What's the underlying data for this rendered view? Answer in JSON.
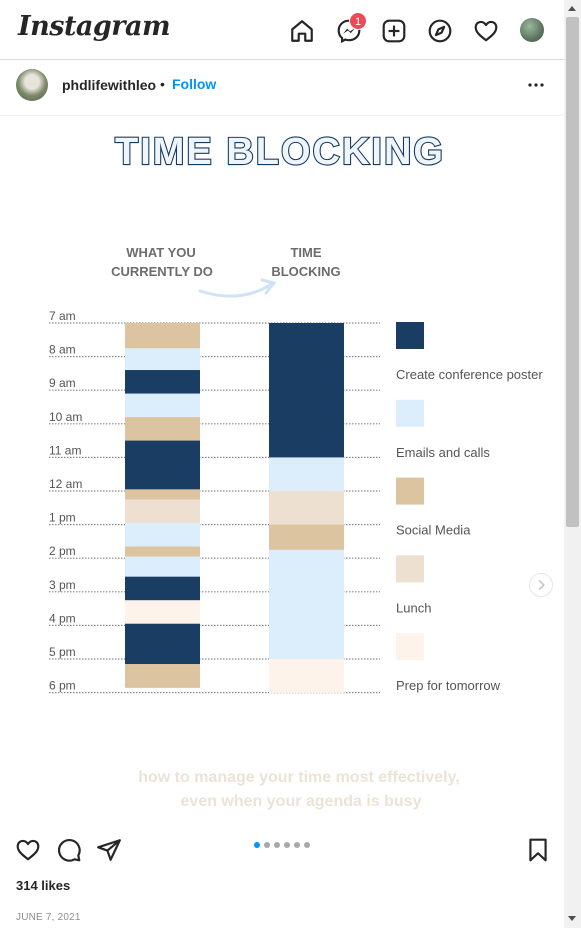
{
  "app": {
    "logo": "Instagram",
    "messages_badge": "1"
  },
  "nav_icons": [
    "home-icon",
    "messenger-icon",
    "new-post-icon",
    "explore-icon",
    "activity-heart-icon",
    "profile-avatar"
  ],
  "post": {
    "author": "phdlifewithleo",
    "separator": "•",
    "follow_label": "Follow",
    "likes": "314 likes",
    "date": "JUNE 7, 2021",
    "carousel": {
      "count": 6,
      "active": 1
    }
  },
  "infographic": {
    "title": "TIME BLOCKING",
    "col1_line1": "WHAT YOU",
    "col1_line2": "CURRENTLY DO",
    "col2_line1": "TIME",
    "col2_line2": "BLOCKING",
    "hours": [
      "7 am",
      "8 am",
      "9 am",
      "10 am",
      "11 am",
      "12 am",
      "1 pm",
      "2 pm",
      "3 pm",
      "4 pm",
      "5 pm",
      "6 pm"
    ],
    "legend": [
      {
        "label": "Create conference poster",
        "color": "#193d63"
      },
      {
        "label": "Emails and calls",
        "color": "#dcedfb"
      },
      {
        "label": "Social Media",
        "color": "#dcc4a0"
      },
      {
        "label": "Lunch",
        "color": "#ede0d0"
      },
      {
        "label": "Prep for tomorrow",
        "color": "#fdf3ea"
      }
    ],
    "current_blocks": [
      {
        "hours": 0.75,
        "category": "Social Media"
      },
      {
        "hours": 0.65,
        "category": "Emails and calls"
      },
      {
        "hours": 0.7,
        "category": "Create conference poster"
      },
      {
        "hours": 0.7,
        "category": "Emails and calls"
      },
      {
        "hours": 0.7,
        "category": "Social Media"
      },
      {
        "hours": 1.45,
        "category": "Create conference poster"
      },
      {
        "hours": 0.3,
        "category": "Social Media"
      },
      {
        "hours": 0.7,
        "category": "Lunch"
      },
      {
        "hours": 0.7,
        "category": "Emails and calls"
      },
      {
        "hours": 0.3,
        "category": "Social Media"
      },
      {
        "hours": 0.6,
        "category": "Emails and calls"
      },
      {
        "hours": 0.7,
        "category": "Create conference poster"
      },
      {
        "hours": 0.7,
        "category": "Prep for tomorrow"
      },
      {
        "hours": 1.2,
        "category": "Create conference poster"
      },
      {
        "hours": 0.7,
        "category": "Social Media"
      }
    ],
    "timeblock_blocks": [
      {
        "hours": 4.0,
        "category": "Create conference poster"
      },
      {
        "hours": 1.0,
        "category": "Emails and calls"
      },
      {
        "hours": 1.0,
        "category": "Lunch"
      },
      {
        "hours": 0.75,
        "category": "Social Media"
      },
      {
        "hours": 3.25,
        "category": "Emails and calls"
      },
      {
        "hours": 1.0,
        "category": "Prep for tomorrow"
      }
    ],
    "caption_line1": "how to manage your time most effectively,",
    "caption_line2": "even when your agenda is busy"
  }
}
